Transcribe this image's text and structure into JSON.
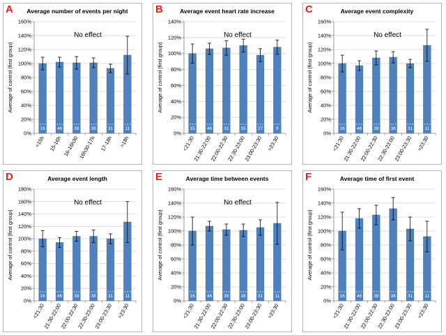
{
  "chart_data": [
    {
      "panel": "A",
      "type": "bar",
      "title": "Average number of events per night",
      "ylabel": "Average of control (first group)",
      "annotation": "No effect",
      "ylim": [
        0,
        160
      ],
      "yticks": [
        0,
        20,
        40,
        60,
        80,
        100,
        120,
        140,
        160
      ],
      "categories": [
        "<15h",
        "15-16h",
        "16-16h30",
        "16h30-17h",
        "17-18h",
        ">18h"
      ],
      "values": [
        100,
        102,
        101,
        101,
        93,
        112
      ],
      "errors": [
        9,
        7,
        9,
        7,
        6,
        27
      ],
      "n": [
        "16",
        "46",
        "39",
        "38",
        "31",
        "11"
      ],
      "bar_color": "#4f81bd"
    },
    {
      "panel": "B",
      "type": "bar",
      "title": "Average event heart rate increase",
      "ylabel": "Average of control (first group)",
      "annotation": "No effect",
      "ylim": [
        0,
        140
      ],
      "yticks": [
        0,
        20,
        40,
        60,
        80,
        100,
        120,
        140
      ],
      "categories": [
        "<21:30",
        "21:30-22:00",
        "22:00-22:30",
        "22:30-23:00",
        "23:00-23:30",
        ">23:30"
      ],
      "values": [
        100,
        106,
        107,
        110,
        98,
        108
      ],
      "errors": [
        12,
        7,
        9,
        8,
        8,
        9
      ],
      "n": [
        "15",
        "46",
        "31",
        "35",
        "27",
        "9"
      ],
      "bar_color": "#4f81bd"
    },
    {
      "panel": "C",
      "type": "bar",
      "title": "Average event complexity",
      "ylabel": "Average of control (first group)",
      "annotation": "No effect",
      "ylim": [
        0,
        160
      ],
      "yticks": [
        0,
        20,
        40,
        60,
        80,
        100,
        120,
        140,
        160
      ],
      "categories": [
        "<21:30",
        "21:30-22:00",
        "22:00-22:30",
        "22:30-23:00",
        "23:00-23:30",
        ">23:30"
      ],
      "values": [
        100,
        97,
        108,
        109,
        100,
        126
      ],
      "errors": [
        12,
        7,
        10,
        8,
        6,
        23
      ],
      "n": [
        "16",
        "46",
        "39",
        "38",
        "31",
        "11"
      ],
      "bar_color": "#4f81bd"
    },
    {
      "panel": "D",
      "type": "bar",
      "title": "Average event length",
      "ylabel": "Average of control (first group)",
      "annotation": "No effect",
      "ylim": [
        0,
        180
      ],
      "yticks": [
        0,
        20,
        40,
        60,
        80,
        100,
        120,
        140,
        160,
        180
      ],
      "categories": [
        "<21:30",
        "21:30-22:00",
        "22:00-22:30",
        "22:30-23:00",
        "23:00-23:30",
        ">23:30"
      ],
      "values": [
        100,
        94,
        104,
        104,
        100,
        127
      ],
      "errors": [
        13,
        8,
        8,
        10,
        8,
        33
      ],
      "n": [
        "16",
        "46",
        "39",
        "38",
        "31",
        "11"
      ],
      "bar_color": "#4f81bd"
    },
    {
      "panel": "E",
      "type": "bar",
      "title": "Average time between events",
      "ylabel": "Average of control (first group)",
      "annotation": "No effect",
      "ylim": [
        0,
        160
      ],
      "yticks": [
        0,
        20,
        40,
        60,
        80,
        100,
        120,
        140,
        160
      ],
      "categories": [
        "<21:30",
        "21:30-22:00",
        "22:00-22:30",
        "22:30-23:00",
        "23:00-23:30",
        ">23:30"
      ],
      "values": [
        100,
        107,
        102,
        101,
        105,
        111
      ],
      "errors": [
        20,
        7,
        8,
        9,
        11,
        30
      ],
      "n": [
        "16",
        "46",
        "39",
        "38",
        "31",
        "11"
      ],
      "bar_color": "#4f81bd"
    },
    {
      "panel": "F",
      "type": "bar",
      "title": "Average time of first event",
      "ylabel": "Average of control (first group)",
      "annotation": "",
      "ylim": [
        0,
        160
      ],
      "yticks": [
        0,
        20,
        40,
        60,
        80,
        100,
        120,
        140,
        160
      ],
      "categories": [
        "<21:30",
        "21:30-22:00",
        "22:00-22:30",
        "22:30-23:00",
        "23:00-23:30",
        ">23:30"
      ],
      "values": [
        100,
        118,
        123,
        132,
        103,
        92
      ],
      "errors": [
        27,
        14,
        14,
        16,
        17,
        22
      ],
      "n": [
        "16",
        "46",
        "39",
        "38",
        "31",
        "11"
      ],
      "bar_color": "#4f81bd"
    }
  ]
}
